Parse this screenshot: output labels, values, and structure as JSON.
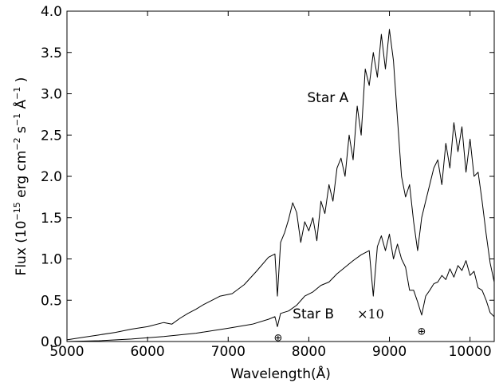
{
  "chart_data": {
    "type": "line",
    "xlabel": "Wavelength(Å)",
    "ylabel": {
      "prefix": "Flux (10",
      "exp1": "−15",
      "unit": " erg cm",
      "exp2": "−2",
      "unit2": " s",
      "exp3": "−1",
      "unit3": " Å",
      "exp4": "−1",
      "suffix": " )"
    },
    "xlim": [
      5000,
      10300
    ],
    "ylim": [
      0.0,
      4.0
    ],
    "xticks": [
      "5000",
      "6000",
      "7000",
      "8000",
      "9000",
      "10000"
    ],
    "xtick_values": [
      5000,
      6000,
      7000,
      8000,
      9000,
      10000
    ],
    "yticks": [
      "0.0",
      "0.5",
      "1.0",
      "1.5",
      "2.0",
      "2.5",
      "3.0",
      "3.5",
      "4.0"
    ],
    "ytick_values": [
      0.0,
      0.5,
      1.0,
      1.5,
      2.0,
      2.5,
      3.0,
      3.5,
      4.0
    ],
    "grid": false,
    "series": [
      {
        "name": "Star A",
        "color": "#000000",
        "x": [
          5000,
          5200,
          5400,
          5600,
          5800,
          6000,
          6200,
          6300,
          6400,
          6500,
          6600,
          6700,
          6800,
          6900,
          7050,
          7200,
          7350,
          7500,
          7580,
          7610,
          7650,
          7700,
          7750,
          7800,
          7850,
          7900,
          7950,
          8000,
          8050,
          8100,
          8150,
          8200,
          8250,
          8300,
          8350,
          8400,
          8450,
          8500,
          8550,
          8600,
          8650,
          8700,
          8750,
          8800,
          8850,
          8900,
          8950,
          9000,
          9050,
          9100,
          9150,
          9200,
          9250,
          9300,
          9350,
          9400,
          9450,
          9500,
          9550,
          9600,
          9650,
          9700,
          9750,
          9800,
          9850,
          9900,
          9950,
          10000,
          10050,
          10100,
          10150,
          10200,
          10250,
          10300
        ],
        "y": [
          0.02,
          0.05,
          0.08,
          0.11,
          0.15,
          0.18,
          0.23,
          0.21,
          0.28,
          0.34,
          0.39,
          0.45,
          0.5,
          0.55,
          0.58,
          0.69,
          0.85,
          1.02,
          1.06,
          0.55,
          1.2,
          1.32,
          1.48,
          1.68,
          1.56,
          1.2,
          1.45,
          1.34,
          1.5,
          1.22,
          1.7,
          1.55,
          1.9,
          1.7,
          2.1,
          2.22,
          2.0,
          2.5,
          2.2,
          2.85,
          2.5,
          3.3,
          3.1,
          3.5,
          3.2,
          3.72,
          3.3,
          3.78,
          3.4,
          2.7,
          2.0,
          1.75,
          1.9,
          1.45,
          1.1,
          1.5,
          1.7,
          1.9,
          2.1,
          2.2,
          1.9,
          2.4,
          2.1,
          2.65,
          2.3,
          2.6,
          2.05,
          2.45,
          2.0,
          2.05,
          1.7,
          1.3,
          0.95,
          0.72
        ]
      },
      {
        "name": "Star B",
        "color": "#000000",
        "x": [
          5000,
          5400,
          5800,
          6200,
          6600,
          7000,
          7300,
          7500,
          7580,
          7610,
          7650,
          7750,
          7850,
          7950,
          8050,
          8150,
          8250,
          8350,
          8450,
          8550,
          8650,
          8750,
          8800,
          8850,
          8900,
          8950,
          9000,
          9050,
          9100,
          9150,
          9200,
          9250,
          9300,
          9350,
          9400,
          9450,
          9500,
          9550,
          9600,
          9650,
          9700,
          9750,
          9800,
          9850,
          9900,
          9950,
          10000,
          10050,
          10100,
          10150,
          10200,
          10250,
          10300
        ],
        "y": [
          0.0,
          0.01,
          0.03,
          0.06,
          0.1,
          0.16,
          0.21,
          0.27,
          0.3,
          0.18,
          0.34,
          0.37,
          0.44,
          0.55,
          0.6,
          0.68,
          0.72,
          0.82,
          0.9,
          0.98,
          1.05,
          1.1,
          0.55,
          1.15,
          1.28,
          1.1,
          1.3,
          1.0,
          1.18,
          1.0,
          0.9,
          0.62,
          0.62,
          0.48,
          0.32,
          0.55,
          0.62,
          0.7,
          0.72,
          0.8,
          0.75,
          0.88,
          0.78,
          0.92,
          0.86,
          0.98,
          0.8,
          0.85,
          0.65,
          0.62,
          0.5,
          0.35,
          0.3
        ]
      }
    ],
    "annotations": {
      "star_a": "Star A",
      "star_b": "Star B",
      "scale": "×10",
      "telluric_symbol": "⊕"
    },
    "annotation_anchors": {
      "star_a": [
        7980,
        2.9
      ],
      "star_b": [
        7800,
        0.28
      ],
      "scale": [
        8600,
        0.28
      ],
      "telluric_1": [
        7620,
        0.1
      ],
      "telluric_2": [
        9400,
        0.18
      ]
    }
  }
}
